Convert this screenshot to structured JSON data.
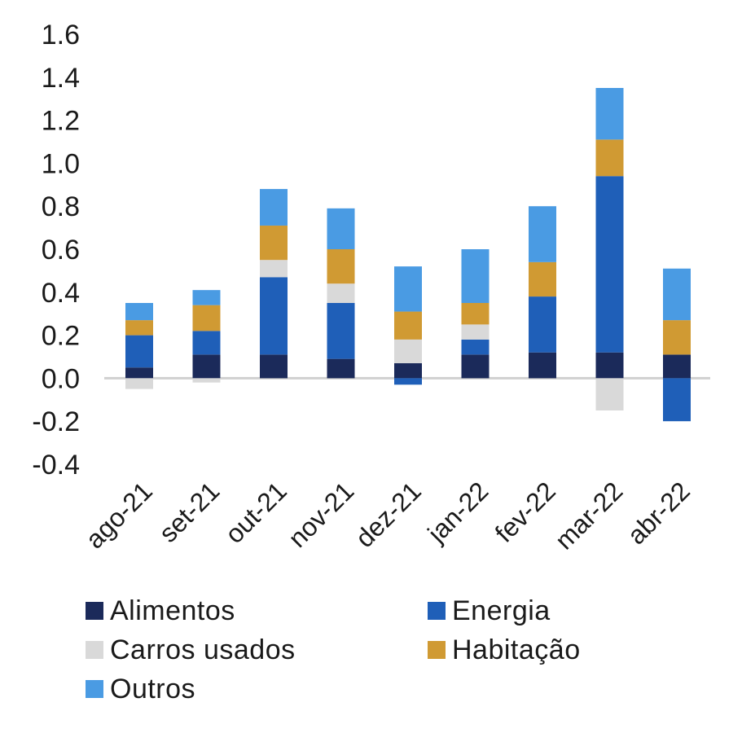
{
  "chart_data": {
    "type": "bar",
    "stacked": true,
    "categories": [
      "ago-21",
      "set-21",
      "out-21",
      "nov-21",
      "dez-21",
      "jan-22",
      "fev-22",
      "mar-22",
      "abr-22"
    ],
    "series": [
      {
        "name": "Alimentos",
        "color": "#1b2a5a",
        "values": [
          0.05,
          0.11,
          0.11,
          0.09,
          0.07,
          0.11,
          0.12,
          0.12,
          0.11
        ]
      },
      {
        "name": "Energia",
        "color": "#1f5fb8",
        "values": [
          0.15,
          0.11,
          0.36,
          0.26,
          -0.03,
          0.07,
          0.26,
          0.82,
          -0.2
        ]
      },
      {
        "name": "Carros usados",
        "color": "#d9d9d9",
        "values": [
          -0.05,
          -0.02,
          0.08,
          0.09,
          0.11,
          0.07,
          0.0,
          -0.15,
          0.0
        ]
      },
      {
        "name": "Habitação",
        "color": "#d09a33",
        "values": [
          0.07,
          0.12,
          0.16,
          0.16,
          0.13,
          0.1,
          0.16,
          0.17,
          0.16
        ]
      },
      {
        "name": "Outros",
        "color": "#4a9be3",
        "values": [
          0.08,
          0.07,
          0.17,
          0.19,
          0.21,
          0.25,
          0.26,
          0.24,
          0.24
        ]
      }
    ],
    "ylim": [
      -0.4,
      1.6
    ],
    "yticks": [
      "1.6",
      "1.4",
      "1.2",
      "1.0",
      "0.8",
      "0.6",
      "0.4",
      "0.2",
      "0.0",
      "-0.2",
      "-0.4"
    ],
    "ytick_values": [
      1.6,
      1.4,
      1.2,
      1.0,
      0.8,
      0.6,
      0.4,
      0.2,
      0.0,
      -0.2,
      -0.4
    ],
    "grid": false,
    "legend_position": "bottom",
    "title": "",
    "xlabel": "",
    "ylabel": ""
  }
}
